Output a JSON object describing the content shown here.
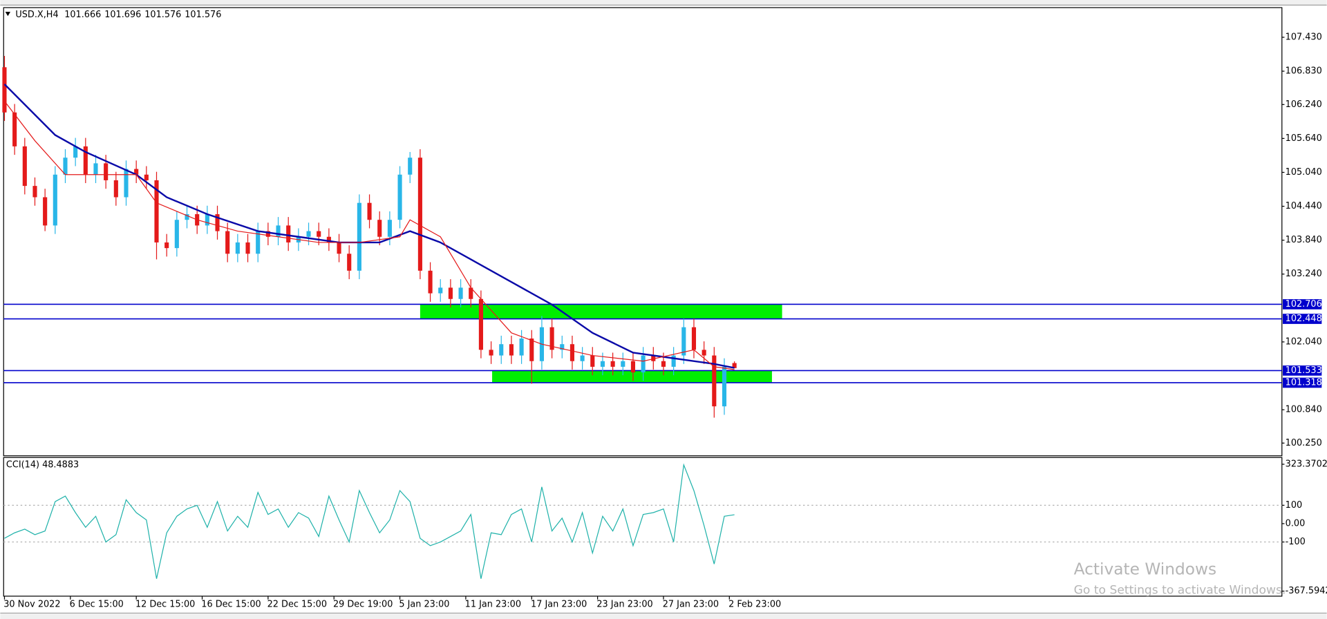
{
  "header": {
    "symbol": "USD.X,H4"
  },
  "watermark": {
    "title": "Activate Windows",
    "subtitle": "Go to Settings to activate Windows."
  },
  "chart_data": [
    {
      "type": "candlestick",
      "up_color": "#29b6e8",
      "down_color": "#e41a1a",
      "open": [
        106.9,
        106.1,
        105.5,
        104.8,
        104.6,
        104.1,
        105.0,
        105.3,
        105.5,
        105.0,
        105.2,
        104.9,
        104.6,
        105.1,
        105.0,
        104.9,
        103.8,
        103.7,
        104.2,
        104.3,
        104.1,
        104.3,
        104.0,
        103.6,
        103.8,
        103.6,
        104.0,
        103.9,
        104.1,
        103.8,
        103.9,
        104.0,
        103.9,
        103.8,
        103.6,
        103.3,
        104.5,
        104.2,
        103.9,
        104.2,
        105.0,
        105.3,
        103.3,
        102.9,
        103.0,
        102.8,
        103.0,
        102.8,
        101.9,
        101.8,
        102.0,
        101.8,
        102.1,
        101.7,
        102.3,
        101.9,
        102.0,
        101.7,
        101.8,
        101.6,
        101.7,
        101.6,
        101.7,
        101.5,
        101.8,
        101.7,
        101.6,
        101.8,
        102.3,
        101.9,
        101.8,
        100.9,
        101.666
      ],
      "high": [
        107.1,
        106.25,
        105.65,
        104.95,
        104.75,
        105.15,
        105.45,
        105.65,
        105.65,
        105.35,
        105.35,
        105.05,
        105.25,
        105.25,
        105.15,
        105.05,
        103.95,
        104.35,
        104.45,
        104.45,
        104.45,
        104.45,
        104.15,
        103.95,
        103.95,
        104.15,
        104.15,
        104.25,
        104.25,
        104.05,
        104.15,
        104.15,
        104.05,
        103.95,
        103.75,
        104.65,
        104.65,
        104.35,
        104.35,
        105.15,
        105.4,
        105.45,
        103.45,
        103.15,
        103.15,
        103.15,
        103.15,
        102.95,
        102.05,
        102.15,
        102.15,
        102.25,
        102.25,
        102.5,
        102.45,
        102.15,
        102.15,
        101.95,
        101.95,
        101.85,
        101.85,
        101.85,
        101.85,
        101.95,
        101.95,
        101.85,
        101.95,
        102.45,
        102.45,
        102.05,
        101.95,
        101.75,
        101.696
      ],
      "low": [
        105.95,
        105.35,
        104.65,
        104.45,
        104.0,
        103.95,
        104.85,
        105.15,
        104.85,
        104.85,
        104.75,
        104.45,
        104.45,
        104.85,
        104.75,
        103.5,
        103.55,
        103.55,
        104.05,
        103.95,
        103.95,
        103.85,
        103.45,
        103.45,
        103.45,
        103.45,
        103.75,
        103.75,
        103.65,
        103.65,
        103.75,
        103.75,
        103.65,
        103.45,
        103.15,
        103.15,
        104.05,
        103.75,
        103.75,
        104.05,
        104.85,
        103.15,
        102.75,
        102.75,
        102.65,
        102.65,
        102.65,
        101.75,
        101.65,
        101.65,
        101.65,
        101.65,
        101.3,
        101.55,
        101.75,
        101.75,
        101.55,
        101.55,
        101.45,
        101.45,
        101.45,
        101.45,
        101.35,
        101.35,
        101.55,
        101.45,
        101.45,
        101.65,
        101.75,
        101.65,
        100.7,
        100.75,
        101.576
      ],
      "close": [
        106.1,
        105.5,
        104.8,
        104.6,
        104.1,
        105.0,
        105.3,
        105.5,
        105.0,
        105.2,
        104.9,
        104.6,
        105.1,
        105.0,
        104.9,
        103.8,
        103.7,
        104.2,
        104.3,
        104.1,
        104.3,
        104.0,
        103.6,
        103.8,
        103.6,
        104.0,
        103.9,
        104.1,
        103.8,
        103.9,
        104.0,
        103.9,
        103.8,
        103.6,
        103.3,
        104.5,
        104.2,
        103.9,
        104.2,
        105.0,
        105.3,
        103.3,
        102.9,
        103.0,
        102.8,
        103.0,
        102.8,
        101.9,
        101.8,
        102.0,
        101.8,
        102.1,
        101.7,
        102.3,
        101.9,
        102.0,
        101.7,
        101.8,
        101.6,
        101.7,
        101.6,
        101.7,
        101.5,
        101.8,
        101.7,
        101.6,
        101.8,
        102.3,
        101.9,
        101.8,
        100.9,
        101.6,
        101.576
      ],
      "series": [
        {
          "color": "#0a0aa8",
          "x": [
            0,
            5,
            8,
            13,
            16,
            20,
            25,
            29,
            33,
            37,
            40,
            43,
            46,
            50,
            54,
            58,
            62,
            66,
            70,
            72
          ],
          "values": [
            106.6,
            105.7,
            105.4,
            105.0,
            104.6,
            104.3,
            104.0,
            103.9,
            103.8,
            103.8,
            104.0,
            103.8,
            103.5,
            103.1,
            102.7,
            102.2,
            101.85,
            101.75,
            101.65,
            101.58
          ]
        },
        {
          "color": "#e41a1a",
          "x": [
            0,
            3,
            6,
            10,
            13,
            15,
            19,
            23,
            27,
            31,
            35,
            39,
            40,
            43,
            46,
            50,
            53,
            58,
            63,
            68,
            70,
            72
          ],
          "values": [
            106.3,
            105.6,
            105.0,
            105.0,
            105.0,
            104.5,
            104.2,
            104.0,
            103.9,
            103.8,
            103.8,
            103.9,
            104.2,
            103.9,
            103.0,
            102.2,
            102.0,
            101.8,
            101.7,
            101.9,
            101.6,
            101.55
          ]
        }
      ],
      "hlines": [
        102.706,
        102.448,
        101.533,
        101.318
      ],
      "hline_color": "#0000cc",
      "zones": [
        {
          "y": [
            102.448,
            102.706
          ],
          "x": [
            41,
            76.7
          ]
        },
        {
          "y": [
            101.318,
            101.533
          ],
          "x": [
            48.1,
            75.7
          ]
        }
      ],
      "zone_color": "#00ee00",
      "xlim": [
        0,
        126
      ],
      "ylim": [
        100.04,
        107.94
      ],
      "yticks": [
        {
          "value": 107.43,
          "label": "107.430"
        },
        {
          "value": 106.83,
          "label": "106.830"
        },
        {
          "value": 106.24,
          "label": "106.240"
        },
        {
          "value": 105.64,
          "label": "105.640"
        },
        {
          "value": 105.04,
          "label": "105.040"
        },
        {
          "value": 104.44,
          "label": "104.440"
        },
        {
          "value": 103.84,
          "label": "103.840"
        },
        {
          "value": 103.24,
          "label": "103.240"
        },
        {
          "value": 102.04,
          "label": "102.040"
        },
        {
          "value": 100.84,
          "label": "100.840"
        },
        {
          "value": 100.25,
          "label": "100.250"
        }
      ]
    },
    {
      "type": "line",
      "title": "CCI(14) 48.4883",
      "color": "#20b2aa",
      "values": [
        -80,
        -50,
        -30,
        -60,
        -40,
        120,
        150,
        60,
        -20,
        40,
        -100,
        -60,
        130,
        60,
        20,
        -300,
        -50,
        40,
        80,
        100,
        -20,
        120,
        -40,
        40,
        -20,
        170,
        50,
        80,
        -20,
        60,
        30,
        -70,
        150,
        20,
        -100,
        180,
        60,
        -50,
        20,
        180,
        120,
        -80,
        -120,
        -100,
        -70,
        -40,
        50,
        -300,
        -50,
        -60,
        50,
        80,
        -100,
        200,
        -40,
        30,
        -100,
        60,
        -160,
        40,
        -40,
        80,
        -120,
        50,
        60,
        80,
        -100,
        320,
        180,
        -10,
        -220,
        40,
        48.4883
      ],
      "xlim": [
        0,
        126
      ],
      "ylim": [
        -395,
        351
      ],
      "yticks": [
        323.3702,
        100,
        {
          "value": 0,
          "label": "0.00"
        },
        -100,
        -367.5942
      ],
      "levels": [
        100,
        -100
      ],
      "xticks": [
        {
          "value": 0,
          "label": "30 Nov 2022"
        },
        {
          "value": 6.5,
          "label": "6 Dec 15:00"
        },
        {
          "value": 13,
          "label": "12 Dec 15:00"
        },
        {
          "value": 19.5,
          "label": "16 Dec 15:00"
        },
        {
          "value": 26,
          "label": "22 Dec 15:00"
        },
        {
          "value": 32.5,
          "label": "29 Dec 19:00"
        },
        {
          "value": 39,
          "label": "5 Jan 23:00"
        },
        {
          "value": 45.5,
          "label": "11 Jan 23:00"
        },
        {
          "value": 52,
          "label": "17 Jan 23:00"
        },
        {
          "value": 58.5,
          "label": "23 Jan 23:00"
        },
        {
          "value": 65,
          "label": "27 Jan 23:00"
        },
        {
          "value": 71.5,
          "label": "2 Feb 23:00"
        }
      ]
    }
  ]
}
